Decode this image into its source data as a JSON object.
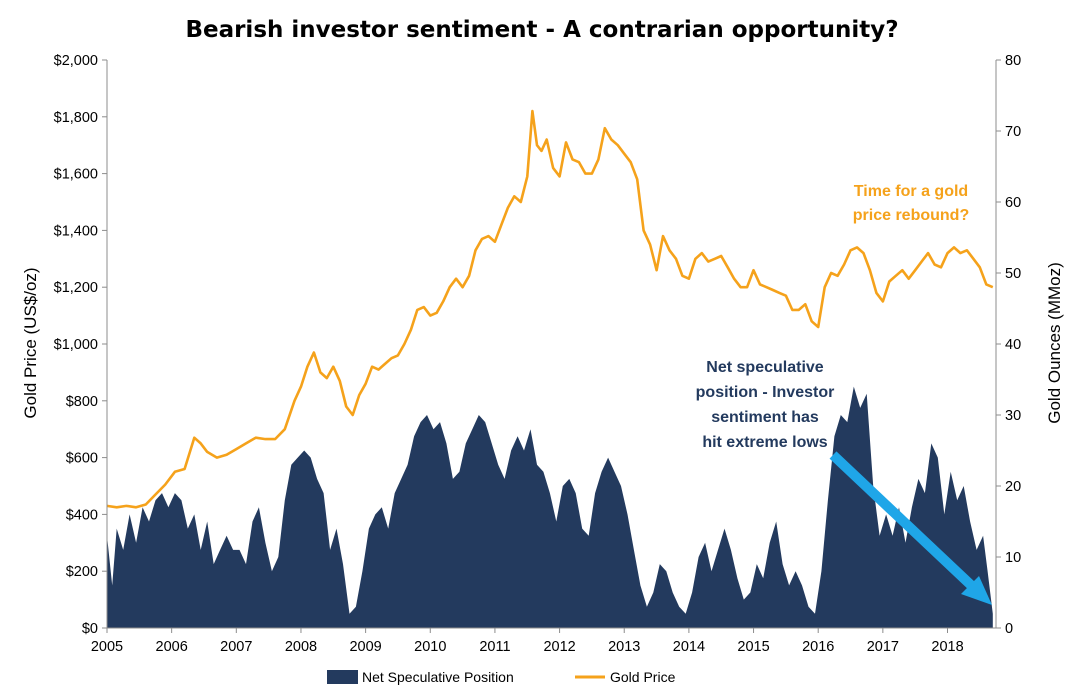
{
  "chart_data": {
    "type": "line",
    "title": "Bearish investor sentiment - A contrarian opportunity?",
    "ylabel_left": "Gold Price (US$/oz)",
    "ylabel_right": "Gold Ounces (MMoz)",
    "ylim_left": [
      0,
      2000
    ],
    "ylim_right": [
      0,
      80
    ],
    "xlim": [
      2005,
      2018.75
    ],
    "x_ticks": [
      "2005",
      "2006",
      "2007",
      "2008",
      "2009",
      "2010",
      "2011",
      "2012",
      "2013",
      "2014",
      "2015",
      "2016",
      "2017",
      "2018"
    ],
    "y_ticks_left": [
      "$0",
      "$200",
      "$400",
      "$600",
      "$800",
      "$1,000",
      "$1,200",
      "$1,400",
      "$1,600",
      "$1,800",
      "$2,000"
    ],
    "y_ticks_right": [
      "0",
      "10",
      "20",
      "30",
      "40",
      "50",
      "60",
      "70",
      "80"
    ],
    "grid": false,
    "legend_position": "bottom",
    "series": [
      {
        "name": "Net Speculative Position",
        "type": "area",
        "axis": "right",
        "color": "#233a5e",
        "x": [
          2005.0,
          2005.08,
          2005.15,
          2005.25,
          2005.35,
          2005.45,
          2005.55,
          2005.65,
          2005.75,
          2005.85,
          2005.95,
          2006.05,
          2006.15,
          2006.25,
          2006.35,
          2006.45,
          2006.55,
          2006.65,
          2006.75,
          2006.85,
          2006.95,
          2007.05,
          2007.15,
          2007.25,
          2007.35,
          2007.45,
          2007.55,
          2007.65,
          2007.75,
          2007.85,
          2007.95,
          2008.05,
          2008.15,
          2008.25,
          2008.35,
          2008.45,
          2008.55,
          2008.65,
          2008.75,
          2008.85,
          2008.95,
          2009.05,
          2009.15,
          2009.25,
          2009.35,
          2009.45,
          2009.55,
          2009.65,
          2009.75,
          2009.85,
          2009.95,
          2010.05,
          2010.15,
          2010.25,
          2010.35,
          2010.45,
          2010.55,
          2010.65,
          2010.75,
          2010.85,
          2010.95,
          2011.05,
          2011.15,
          2011.25,
          2011.35,
          2011.45,
          2011.55,
          2011.65,
          2011.75,
          2011.85,
          2011.95,
          2012.05,
          2012.15,
          2012.25,
          2012.35,
          2012.45,
          2012.55,
          2012.65,
          2012.75,
          2012.85,
          2012.95,
          2013.05,
          2013.15,
          2013.25,
          2013.35,
          2013.45,
          2013.55,
          2013.65,
          2013.75,
          2013.85,
          2013.95,
          2014.05,
          2014.15,
          2014.25,
          2014.35,
          2014.45,
          2014.55,
          2014.65,
          2014.75,
          2014.85,
          2014.95,
          2015.05,
          2015.15,
          2015.25,
          2015.35,
          2015.45,
          2015.55,
          2015.65,
          2015.75,
          2015.85,
          2015.95,
          2016.05,
          2016.15,
          2016.25,
          2016.35,
          2016.45,
          2016.55,
          2016.65,
          2016.75,
          2016.85,
          2016.95,
          2017.05,
          2017.15,
          2017.25,
          2017.35,
          2017.45,
          2017.55,
          2017.65,
          2017.75,
          2017.85,
          2017.95,
          2018.05,
          2018.15,
          2018.25,
          2018.35,
          2018.45,
          2018.55,
          2018.62,
          2018.7
        ],
        "values": [
          13,
          6,
          14,
          11,
          16,
          12,
          17,
          15,
          18,
          19,
          17,
          19,
          18,
          14,
          16,
          11,
          15,
          9,
          11,
          13,
          11,
          11,
          9,
          15,
          17,
          12,
          8,
          10,
          18,
          23,
          24,
          25,
          24,
          21,
          19,
          11,
          14,
          9,
          2,
          3,
          8,
          14,
          16,
          17,
          14,
          19,
          21,
          23,
          27,
          29,
          30,
          28,
          29,
          26,
          21,
          22,
          26,
          28,
          30,
          29,
          26,
          23,
          21,
          25,
          27,
          25,
          28,
          23,
          22,
          19,
          15,
          20,
          21,
          19,
          14,
          13,
          19,
          22,
          24,
          22,
          20,
          16,
          11,
          6,
          3,
          5,
          9,
          8,
          5,
          3,
          2,
          5,
          10,
          12,
          8,
          11,
          14,
          11,
          7,
          4,
          5,
          9,
          7,
          12,
          15,
          9,
          6,
          8,
          6,
          3,
          2,
          8,
          18,
          27,
          30,
          29,
          34,
          31,
          33,
          20,
          13,
          16,
          13,
          17,
          12,
          17,
          21,
          19,
          26,
          24,
          16,
          22,
          18,
          20,
          15,
          11,
          13,
          8,
          2
        ]
      },
      {
        "name": "Gold Price",
        "type": "line",
        "axis": "left",
        "color": "#f5a21b",
        "x": [
          2005.0,
          2005.15,
          2005.3,
          2005.45,
          2005.6,
          2005.75,
          2005.9,
          2006.05,
          2006.2,
          2006.35,
          2006.45,
          2006.55,
          2006.7,
          2006.85,
          2007.0,
          2007.15,
          2007.3,
          2007.45,
          2007.6,
          2007.75,
          2007.9,
          2008.0,
          2008.1,
          2008.2,
          2008.3,
          2008.4,
          2008.5,
          2008.6,
          2008.7,
          2008.8,
          2008.9,
          2009.0,
          2009.1,
          2009.2,
          2009.3,
          2009.4,
          2009.5,
          2009.6,
          2009.7,
          2009.8,
          2009.9,
          2010.0,
          2010.1,
          2010.2,
          2010.3,
          2010.4,
          2010.5,
          2010.6,
          2010.7,
          2010.8,
          2010.9,
          2011.0,
          2011.1,
          2011.2,
          2011.3,
          2011.4,
          2011.5,
          2011.58,
          2011.65,
          2011.72,
          2011.8,
          2011.9,
          2012.0,
          2012.1,
          2012.2,
          2012.3,
          2012.4,
          2012.5,
          2012.6,
          2012.7,
          2012.8,
          2012.9,
          2013.0,
          2013.1,
          2013.2,
          2013.3,
          2013.4,
          2013.5,
          2013.6,
          2013.7,
          2013.8,
          2013.9,
          2014.0,
          2014.1,
          2014.2,
          2014.3,
          2014.4,
          2014.5,
          2014.6,
          2014.7,
          2014.8,
          2014.9,
          2015.0,
          2015.1,
          2015.2,
          2015.3,
          2015.4,
          2015.5,
          2015.6,
          2015.7,
          2015.8,
          2015.9,
          2016.0,
          2016.1,
          2016.2,
          2016.3,
          2016.4,
          2016.5,
          2016.6,
          2016.7,
          2016.8,
          2016.9,
          2017.0,
          2017.1,
          2017.2,
          2017.3,
          2017.4,
          2017.5,
          2017.6,
          2017.7,
          2017.8,
          2017.9,
          2018.0,
          2018.1,
          2018.2,
          2018.3,
          2018.4,
          2018.5,
          2018.6,
          2018.7
        ],
        "values": [
          430,
          425,
          430,
          425,
          435,
          470,
          505,
          550,
          560,
          670,
          650,
          620,
          600,
          610,
          630,
          650,
          670,
          665,
          665,
          700,
          800,
          850,
          920,
          970,
          900,
          880,
          920,
          870,
          780,
          750,
          820,
          860,
          920,
          910,
          930,
          950,
          960,
          1000,
          1050,
          1120,
          1130,
          1100,
          1110,
          1150,
          1200,
          1230,
          1200,
          1240,
          1330,
          1370,
          1380,
          1360,
          1420,
          1480,
          1520,
          1500,
          1590,
          1820,
          1700,
          1680,
          1720,
          1620,
          1590,
          1710,
          1650,
          1640,
          1600,
          1600,
          1650,
          1760,
          1720,
          1700,
          1670,
          1640,
          1580,
          1400,
          1350,
          1260,
          1380,
          1330,
          1300,
          1240,
          1230,
          1300,
          1320,
          1290,
          1300,
          1310,
          1270,
          1230,
          1200,
          1200,
          1260,
          1210,
          1200,
          1190,
          1180,
          1170,
          1120,
          1120,
          1140,
          1080,
          1060,
          1200,
          1250,
          1240,
          1280,
          1330,
          1340,
          1320,
          1260,
          1180,
          1150,
          1220,
          1240,
          1260,
          1230,
          1260,
          1290,
          1320,
          1280,
          1270,
          1320,
          1340,
          1320,
          1330,
          1300,
          1270,
          1210,
          1200
        ]
      }
    ]
  },
  "annotations": {
    "gold_rebound": [
      "Time for a  gold",
      "price rebound?"
    ],
    "net_spec": [
      "Net speculative",
      "position - Investor",
      "sentiment has",
      "hit extreme lows"
    ]
  },
  "arrow": {
    "color": "#1fa6e8"
  }
}
